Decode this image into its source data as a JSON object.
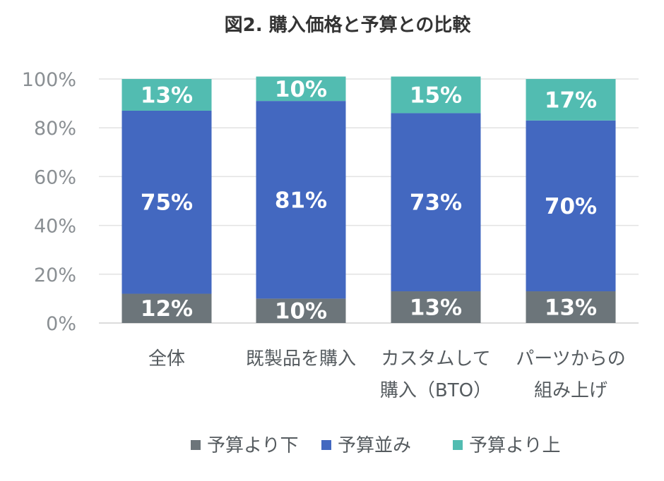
{
  "chart_data": {
    "type": "bar",
    "stacked": true,
    "title": "図2. 購入価格と予算との比較",
    "categories": [
      [
        "全体"
      ],
      [
        "既製品を購入"
      ],
      [
        "カスタムして",
        "購入（BTO）"
      ],
      [
        "パーツからの",
        "組み上げ"
      ]
    ],
    "series": [
      {
        "name": "予算より下",
        "color": "#6c757a",
        "values": [
          12,
          10,
          13,
          13
        ]
      },
      {
        "name": "予算並み",
        "color": "#4368c0",
        "values": [
          75,
          81,
          73,
          70
        ]
      },
      {
        "name": "予算より上",
        "color": "#52bcb1",
        "values": [
          13,
          10,
          15,
          17
        ]
      }
    ],
    "yticks": [
      "0%",
      "20%",
      "40%",
      "60%",
      "80%",
      "100%"
    ],
    "ylim": [
      0,
      100
    ],
    "value_suffix": "%",
    "grid": true,
    "legend": "bottom"
  }
}
